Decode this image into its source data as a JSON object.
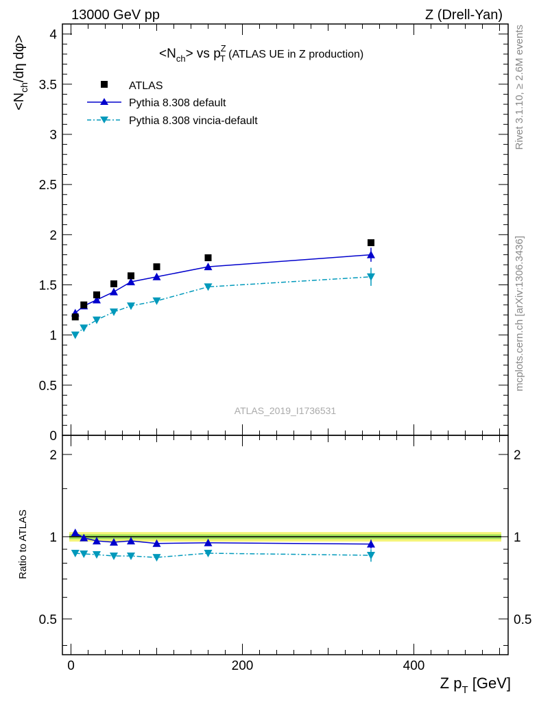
{
  "header": {
    "left": "13000 GeV pp",
    "right": "Z (Drell-Yan)"
  },
  "side_text": {
    "rivet": "Rivet 3.1.10, ≥ 2.6M events",
    "mcplots": "mcplots.cern.ch [arXiv:1306.3436]"
  },
  "watermark": "ATLAS_2019_I1736531",
  "title": {
    "open": "<N",
    "sub1": "ch",
    "mid": "> vs p",
    "sup": "Z",
    "sub2": "T",
    "rest": " (ATLAS UE in Z production)"
  },
  "ylabel_main": {
    "p1": "<N",
    "sub": "ch",
    "p2": "/dη dφ>"
  },
  "ylabel_ratio": "Ratio to ATLAS",
  "xlabel": {
    "p1": "Z p",
    "sub": "T",
    "p2": " [GeV]"
  },
  "legend": [
    {
      "key": "atlas",
      "label": "ATLAS"
    },
    {
      "key": "default",
      "label": "Pythia 8.308 default"
    },
    {
      "key": "vincia",
      "label": "Pythia 8.308 vincia-default"
    }
  ],
  "colors": {
    "atlas": "#000000",
    "default": "#0000cc",
    "vincia": "#0099bb",
    "band_inner": "#9ee05a",
    "band_outer": "#f5f57a"
  },
  "chart_data": [
    {
      "type": "scatter",
      "panel": "main",
      "xlim": [
        -10,
        510
      ],
      "ylim": [
        0,
        4.1
      ],
      "yticks": [
        0,
        0.5,
        1,
        1.5,
        2,
        2.5,
        3,
        3.5,
        4
      ],
      "ytick_labels": [
        "0",
        "0.5",
        "1",
        "1.5",
        "2",
        "2.5",
        "3",
        "3.5",
        "4"
      ],
      "x": [
        5,
        15,
        30,
        50,
        70,
        100,
        160,
        350
      ],
      "series": [
        {
          "key": "atlas",
          "name": "ATLAS",
          "values": [
            1.18,
            1.3,
            1.4,
            1.51,
            1.59,
            1.68,
            1.77,
            1.92
          ],
          "errors": [
            0.02,
            0.02,
            0.02,
            0.02,
            0.02,
            0.02,
            0.02,
            0.02
          ]
        },
        {
          "key": "default",
          "name": "Pythia 8.308 default",
          "values": [
            1.22,
            1.29,
            1.35,
            1.43,
            1.53,
            1.58,
            1.68,
            1.8
          ],
          "errors": [
            0.01,
            0.01,
            0.01,
            0.01,
            0.01,
            0.01,
            0.03,
            0.07
          ]
        },
        {
          "key": "vincia",
          "name": "Pythia 8.308 vincia-default",
          "values": [
            1.0,
            1.07,
            1.15,
            1.23,
            1.29,
            1.34,
            1.48,
            1.58
          ],
          "errors": [
            0.01,
            0.01,
            0.01,
            0.01,
            0.01,
            0.01,
            0.02,
            0.09
          ]
        }
      ]
    },
    {
      "type": "scatter",
      "panel": "ratio",
      "xlim": [
        -10,
        510
      ],
      "ylim": [
        0.37,
        2.35
      ],
      "log_y": true,
      "yticks": [
        0.5,
        1,
        2
      ],
      "ytick_labels": [
        "0.5",
        "1",
        "2"
      ],
      "xticks": [
        0,
        200,
        400
      ],
      "xtick_labels": [
        "0",
        "200",
        "400"
      ],
      "x": [
        5,
        15,
        30,
        50,
        70,
        100,
        160,
        350
      ],
      "band": {
        "inner": 0.02,
        "outer": 0.04
      },
      "series": [
        {
          "key": "default",
          "name": "Pythia 8.308 default",
          "values": [
            1.035,
            0.99,
            0.965,
            0.955,
            0.965,
            0.945,
            0.95,
            0.94
          ],
          "errors": [
            0.01,
            0.01,
            0.01,
            0.01,
            0.01,
            0.01,
            0.015,
            0.035
          ]
        },
        {
          "key": "vincia",
          "name": "Pythia 8.308 vincia-default",
          "values": [
            0.87,
            0.865,
            0.86,
            0.85,
            0.85,
            0.84,
            0.87,
            0.855
          ],
          "errors": [
            0.01,
            0.01,
            0.01,
            0.01,
            0.01,
            0.01,
            0.015,
            0.045
          ]
        }
      ]
    }
  ]
}
